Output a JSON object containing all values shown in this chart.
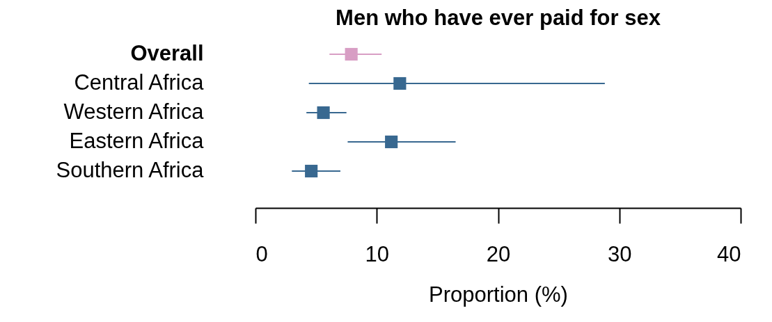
{
  "chart_data": {
    "type": "scatter",
    "orientation": "horizontal",
    "title": "Men who have ever paid for sex",
    "xlabel": "Proportion (%)",
    "categories": [
      "Overall",
      "Central Africa",
      "Western Africa",
      "Eastern Africa",
      "Southern Africa"
    ],
    "values": [
      7.9,
      11.9,
      5.6,
      11.2,
      4.6
    ],
    "errors": [
      [
        6.1,
        10.4
      ],
      [
        4.4,
        28.8
      ],
      [
        4.2,
        7.5
      ],
      [
        7.6,
        16.5
      ],
      [
        3.0,
        7.0
      ]
    ],
    "colors": [
      "#d89ec4",
      "#386890",
      "#386890",
      "#386890",
      "#386890"
    ],
    "xlim": [
      0,
      40
    ],
    "xticks": [
      0,
      10,
      20,
      30,
      40
    ],
    "marker": "square",
    "grid": false
  }
}
